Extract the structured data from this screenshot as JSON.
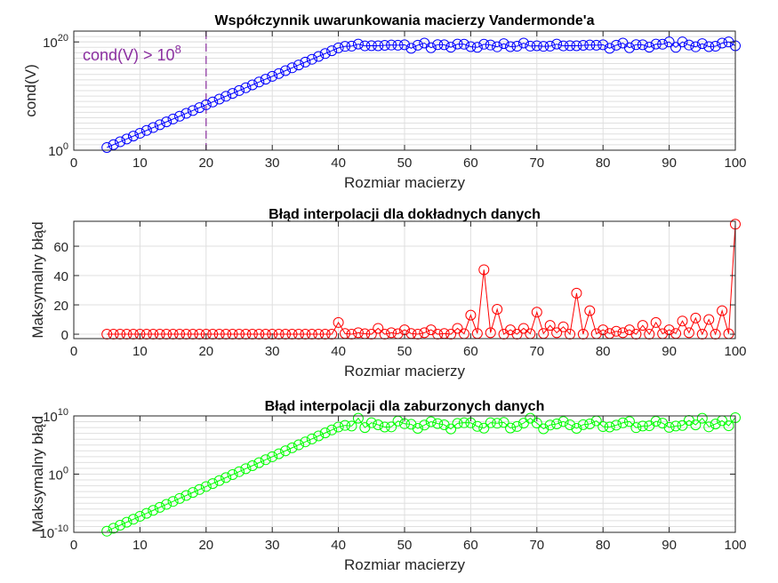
{
  "chart_data": [
    {
      "type": "line",
      "marker": "circle",
      "title": "Współczynnik uwarunkowania macierzy Vandermonde'a",
      "xlabel": "Rozmiar macierzy",
      "ylabel": "cond(V)",
      "xlim": [
        0,
        100
      ],
      "xticks": [
        "0",
        "10",
        "20",
        "30",
        "40",
        "50",
        "60",
        "70",
        "80",
        "90",
        "100"
      ],
      "ylim": [
        1,
        1e+22
      ],
      "yscale": "log",
      "yticks": [
        {
          "base": "10",
          "exp": "0",
          "value": 1
        },
        {
          "base": "10",
          "exp": "20",
          "value": 1e+20
        }
      ],
      "grid": true,
      "color": "#0000ff",
      "annotation": {
        "text": "cond(V) > 10",
        "sup": "8",
        "x": 20,
        "color": "#8b2fa0"
      },
      "series": [
        {
          "values": []
        }
      ]
    },
    {
      "type": "line",
      "marker": "circle",
      "title": "Błąd interpolacji dla dokładnych danych",
      "xlabel": "Rozmiar macierzy",
      "ylabel": "Maksymalny błąd",
      "xlim": [
        0,
        100
      ],
      "xticks": [
        "0",
        "10",
        "20",
        "30",
        "40",
        "50",
        "60",
        "70",
        "80",
        "90",
        "100"
      ],
      "ylim": [
        -3,
        77
      ],
      "yscale": "linear",
      "yticks": [
        {
          "label": "0",
          "value": 0
        },
        {
          "label": "20",
          "value": 20
        },
        {
          "label": "40",
          "value": 40
        },
        {
          "label": "60",
          "value": 60
        }
      ],
      "grid": true,
      "color": "#ff0000",
      "series": [
        {
          "values": []
        }
      ]
    },
    {
      "type": "line",
      "marker": "circle",
      "title": "Błąd interpolacji dla zaburzonych danych",
      "xlabel": "Rozmiar macierzy",
      "ylabel": "Maksymalny błąd",
      "xlim": [
        0,
        100
      ],
      "xticks": [
        "0",
        "10",
        "20",
        "30",
        "40",
        "50",
        "60",
        "70",
        "80",
        "90",
        "100"
      ],
      "ylim": [
        1e-10,
        10000000000.0
      ],
      "yscale": "log",
      "yticks": [
        {
          "base": "10",
          "exp": "-10",
          "value": 1e-10
        },
        {
          "base": "10",
          "exp": "0",
          "value": 1
        },
        {
          "base": "10",
          "exp": "10",
          "value": 10000000000.0
        }
      ],
      "grid": true,
      "color": "#00ff00",
      "series": [
        {
          "values": []
        }
      ]
    }
  ]
}
